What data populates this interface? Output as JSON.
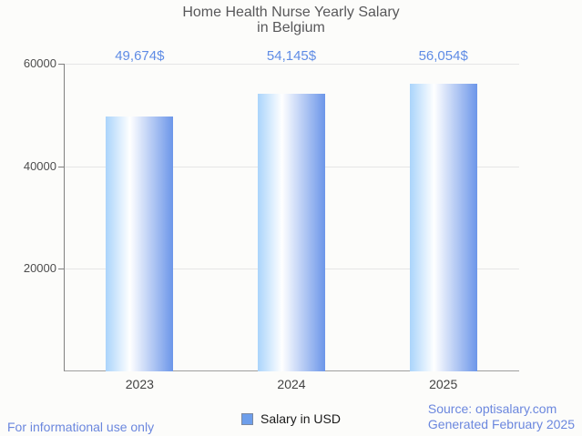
{
  "title": {
    "line1": "Home Health Nurse Yearly Salary",
    "line2": "in Belgium"
  },
  "chart_data": {
    "type": "bar",
    "title": "Home Health Nurse Yearly Salary in Belgium",
    "categories": [
      "2023",
      "2024",
      "2025"
    ],
    "values": [
      49674,
      54145,
      56054
    ],
    "value_labels": [
      "49,674$",
      "54,145$",
      "56,054$"
    ],
    "series": [
      {
        "name": "Salary in USD",
        "values": [
          49674,
          54145,
          56054
        ]
      }
    ],
    "xlabel": "",
    "ylabel": "",
    "ylim": [
      0,
      60000
    ],
    "yticks": [
      20000,
      40000,
      60000
    ],
    "ytick_labels": [
      "20000",
      "40000",
      "60000"
    ],
    "grid": true,
    "legend_position": "bottom",
    "bar_gradient": {
      "left": "#aad4fb",
      "mid": "#ffffff",
      "right": "#6c96e9"
    }
  },
  "legend": {
    "label": "Salary in USD",
    "swatch_color": "#6d9eeb"
  },
  "footer": {
    "left": "For informational use only",
    "source": "Source: optisalary.com",
    "generated": "Generated February 2025"
  },
  "colors": {
    "background": "#fcfcfa",
    "title_text": "#58585a",
    "value_label_text": "#5f8ce5",
    "axis_line": "#808080",
    "gridline": "#e6e6e6",
    "axis_label_text": "#4d4d4d",
    "footer_text": "#6b87de"
  }
}
